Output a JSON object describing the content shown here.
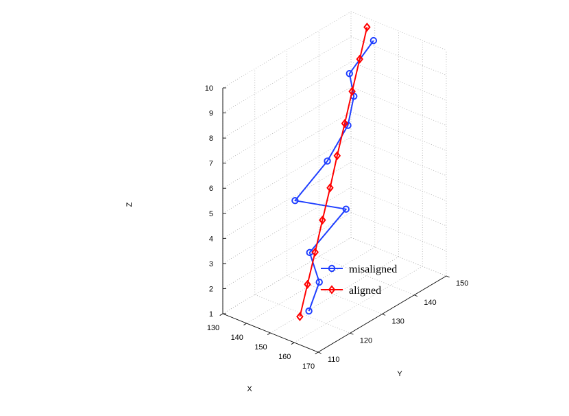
{
  "chart_data": {
    "type": "line3d",
    "title": "",
    "xlabel": "X",
    "ylabel": "Y",
    "zlabel": "Z",
    "xlim": [
      130,
      170
    ],
    "ylim": [
      110,
      150
    ],
    "zlim": [
      1,
      10
    ],
    "xticks": [
      "130",
      "140",
      "150",
      "160",
      "170"
    ],
    "yticks": [
      "110",
      "120",
      "130",
      "140",
      "150"
    ],
    "zticks": [
      "1",
      "2",
      "3",
      "4",
      "5",
      "6",
      "7",
      "8",
      "9",
      "10"
    ],
    "grid": true,
    "legend_position": "bottom-right",
    "series": [
      {
        "name": "misaligned",
        "color": "#1f3fff",
        "marker": "circle",
        "points": [
          {
            "x": 150.4,
            "y": 121.7,
            "z": 1.0
          },
          {
            "x": 151.4,
            "y": 124.2,
            "z": 2.0
          },
          {
            "x": 147.1,
            "y": 124.4,
            "z": 3.0
          },
          {
            "x": 148.5,
            "y": 134.7,
            "z": 4.0
          },
          {
            "x": 142.7,
            "y": 123.1,
            "z": 5.0
          },
          {
            "x": 144.7,
            "y": 131.7,
            "z": 6.0
          },
          {
            "x": 145.4,
            "y": 137.6,
            "z": 7.0
          },
          {
            "x": 145.2,
            "y": 139.6,
            "z": 8.0
          },
          {
            "x": 145.1,
            "y": 138.3,
            "z": 9.0
          },
          {
            "x": 147.8,
            "y": 143.8,
            "z": 10.0
          }
        ]
      },
      {
        "name": "aligned",
        "color": "#ff0000",
        "marker": "diamond",
        "points": [
          {
            "x": 150.5,
            "y": 118.8,
            "z": 1.0
          },
          {
            "x": 149.4,
            "y": 122.0,
            "z": 2.0
          },
          {
            "x": 148.3,
            "y": 125.2,
            "z": 3.0
          },
          {
            "x": 147.2,
            "y": 128.3,
            "z": 4.0
          },
          {
            "x": 146.1,
            "y": 131.5,
            "z": 5.0
          },
          {
            "x": 144.9,
            "y": 134.6,
            "z": 6.0
          },
          {
            "x": 143.8,
            "y": 137.8,
            "z": 7.0
          },
          {
            "x": 142.7,
            "y": 140.9,
            "z": 8.0
          },
          {
            "x": 141.6,
            "y": 144.1,
            "z": 9.0
          },
          {
            "x": 140.5,
            "y": 147.2,
            "z": 10.0
          }
        ]
      }
    ]
  }
}
